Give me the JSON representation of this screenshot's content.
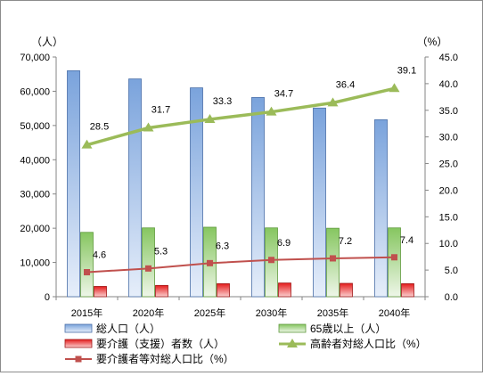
{
  "chart_data": {
    "type": "bar",
    "categories": [
      "2015年",
      "2020年",
      "2025年",
      "2030年",
      "2035年",
      "2040年"
    ],
    "left_axis": {
      "unit_label": "（人）",
      "ylim": [
        0,
        70000
      ],
      "ticks": [
        "0",
        "10,000",
        "20,000",
        "30,000",
        "40,000",
        "50,000",
        "60,000",
        "70,000"
      ],
      "tick_values": [
        0,
        10000,
        20000,
        30000,
        40000,
        50000,
        60000,
        70000
      ]
    },
    "right_axis": {
      "unit_label": "（%）",
      "ylim": [
        0,
        45
      ],
      "ticks": [
        "0.0",
        "5.0",
        "10.0",
        "15.0",
        "20.0",
        "25.0",
        "30.0",
        "35.0",
        "40.0",
        "45.0"
      ],
      "tick_values": [
        0,
        5,
        10,
        15,
        20,
        25,
        30,
        35,
        40,
        45
      ]
    },
    "series": [
      {
        "name": "総人口（人）",
        "type": "bar",
        "axis": "left",
        "color": "#7fa6dc",
        "values": [
          66000,
          63600,
          61000,
          58200,
          55100,
          51700
        ]
      },
      {
        "name": "65歳以上（人）",
        "type": "bar",
        "axis": "left",
        "color": "#8fcc6e",
        "values": [
          18800,
          20100,
          20300,
          20100,
          20000,
          20100
        ]
      },
      {
        "name": "要介護（支援）者数（人）",
        "type": "bar",
        "axis": "left",
        "color": "#e02020",
        "values": [
          3000,
          3300,
          3800,
          4000,
          3900,
          3800
        ]
      },
      {
        "name": "高齢者対総人口比（%）",
        "type": "line",
        "axis": "right",
        "color": "#9bbb59",
        "values": [
          28.5,
          31.7,
          33.3,
          34.7,
          36.4,
          39.1
        ],
        "labels": [
          "28.5",
          "31.7",
          "33.3",
          "34.7",
          "36.4",
          "39.1"
        ]
      },
      {
        "name": "要介護者等対総人口比（%）",
        "type": "line",
        "axis": "right",
        "color": "#c0504d",
        "values": [
          4.6,
          5.3,
          6.3,
          6.9,
          7.2,
          7.4
        ],
        "labels": [
          "4.6",
          "5.3",
          "6.3",
          "6.9",
          "7.2",
          "7.4"
        ]
      }
    ],
    "legend_position": "bottom",
    "grid": false
  }
}
